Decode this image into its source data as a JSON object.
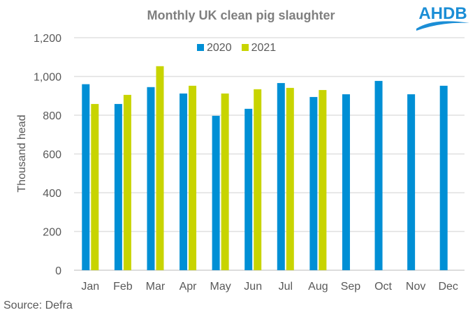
{
  "chart_data": {
    "type": "bar",
    "title": "Monthly  UK clean pig slaughter",
    "xlabel": "",
    "ylabel": "Thousand head",
    "ylim": [
      0,
      1200
    ],
    "yticks": [
      "0",
      "200",
      "400",
      "600",
      "800",
      "1,000",
      "1,200"
    ],
    "ytick_values": [
      0,
      200,
      400,
      600,
      800,
      1000,
      1200
    ],
    "grid": true,
    "legend_position": "top-center",
    "categories": [
      "Jan",
      "Feb",
      "Mar",
      "Apr",
      "May",
      "Jun",
      "Jul",
      "Aug",
      "Sep",
      "Oct",
      "Nov",
      "Dec"
    ],
    "series": [
      {
        "name": "2020",
        "color": "#008fd5",
        "values": [
          960,
          858,
          945,
          912,
          797,
          833,
          966,
          894,
          908,
          977,
          908,
          952
        ]
      },
      {
        "name": "2021",
        "color": "#c8d400",
        "values": [
          858,
          905,
          1053,
          952,
          912,
          934,
          941,
          930,
          null,
          null,
          null,
          null
        ]
      }
    ]
  },
  "logo_text": "AHDB",
  "source": "Source: Defra"
}
